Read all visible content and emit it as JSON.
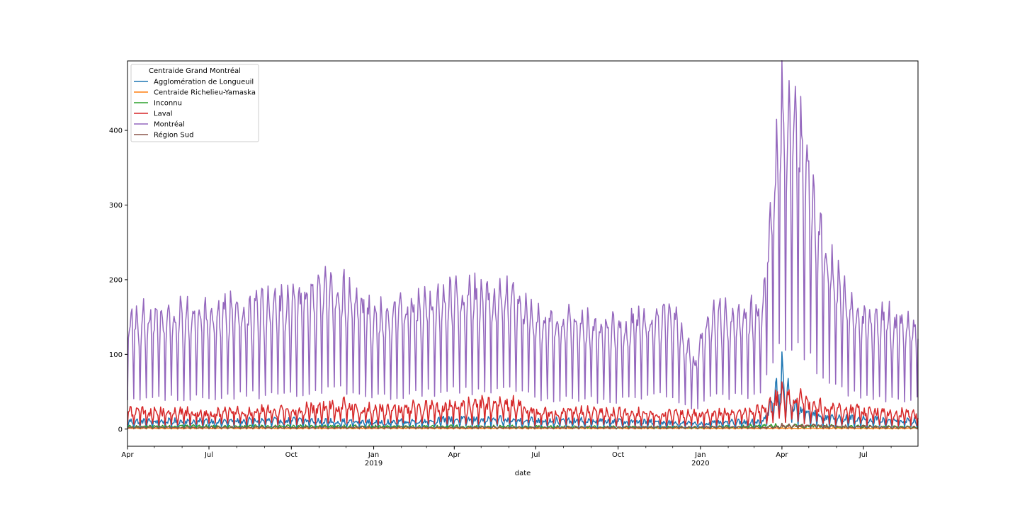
{
  "chart_data": {
    "type": "line",
    "title": "",
    "xlabel": "date",
    "ylabel": "",
    "x_start": "2018-04-01",
    "x_end": "2020-08-31",
    "ylim": [
      -23,
      493
    ],
    "y_ticks": [
      0,
      100,
      200,
      300,
      400
    ],
    "x_ticks": [
      {
        "date": "2018-04-01",
        "label": "Apr",
        "sublabel": ""
      },
      {
        "date": "2018-07-01",
        "label": "Jul",
        "sublabel": ""
      },
      {
        "date": "2018-10-01",
        "label": "Oct",
        "sublabel": ""
      },
      {
        "date": "2019-01-01",
        "label": "Jan",
        "sublabel": "2019"
      },
      {
        "date": "2019-04-01",
        "label": "Apr",
        "sublabel": ""
      },
      {
        "date": "2019-07-01",
        "label": "Jul",
        "sublabel": ""
      },
      {
        "date": "2019-10-01",
        "label": "Oct",
        "sublabel": ""
      },
      {
        "date": "2020-01-01",
        "label": "Jan",
        "sublabel": "2020"
      },
      {
        "date": "2020-04-01",
        "label": "Apr",
        "sublabel": ""
      },
      {
        "date": "2020-07-01",
        "label": "Jul",
        "sublabel": ""
      }
    ],
    "legend": {
      "title": "Centraide Grand Montréal",
      "placement": "upper-left"
    },
    "grid": false,
    "series": [
      {
        "name": "Agglomération de Longueuil",
        "color": "#1f77b4",
        "profile": [
          [
            "2018-04-01",
            8
          ],
          [
            "2018-07-01",
            8
          ],
          [
            "2018-10-01",
            9
          ],
          [
            "2019-01-01",
            7
          ],
          [
            "2019-04-01",
            10
          ],
          [
            "2019-07-01",
            9
          ],
          [
            "2019-10-01",
            8
          ],
          [
            "2020-01-01",
            6
          ],
          [
            "2020-03-10",
            8
          ],
          [
            "2020-03-25",
            35
          ],
          [
            "2020-04-01",
            55
          ],
          [
            "2020-04-12",
            25
          ],
          [
            "2020-05-15",
            12
          ],
          [
            "2020-08-31",
            8
          ]
        ],
        "weekday_factors": [
          1.0,
          1.3,
          1.4,
          1.4,
          1.3,
          1.1,
          0.3
        ],
        "noise": 0.35
      },
      {
        "name": "Centraide Richelieu-Yamaska",
        "color": "#ff7f0e",
        "profile": [
          [
            "2018-04-01",
            1
          ],
          [
            "2020-08-31",
            1
          ]
        ],
        "weekday_factors": [
          1.0,
          1.2,
          1.2,
          1.2,
          1.1,
          0.8,
          0.2
        ],
        "noise": 0.6
      },
      {
        "name": "Inconnu",
        "color": "#2ca02c",
        "profile": [
          [
            "2018-04-01",
            3
          ],
          [
            "2019-04-01",
            3
          ],
          [
            "2020-01-01",
            2
          ],
          [
            "2020-04-01",
            4
          ],
          [
            "2020-08-31",
            2
          ]
        ],
        "weekday_factors": [
          1.0,
          1.2,
          1.3,
          1.3,
          1.2,
          0.9,
          0.3
        ],
        "noise": 0.5
      },
      {
        "name": "Laval",
        "color": "#d62728",
        "profile": [
          [
            "2018-04-01",
            18
          ],
          [
            "2018-07-01",
            17
          ],
          [
            "2018-10-01",
            20
          ],
          [
            "2018-12-01",
            24
          ],
          [
            "2019-01-01",
            20
          ],
          [
            "2019-04-01",
            24
          ],
          [
            "2019-06-01",
            26
          ],
          [
            "2019-07-01",
            18
          ],
          [
            "2019-10-01",
            17
          ],
          [
            "2020-01-01",
            15
          ],
          [
            "2020-03-15",
            20
          ],
          [
            "2020-04-01",
            35
          ],
          [
            "2020-05-01",
            28
          ],
          [
            "2020-06-01",
            20
          ],
          [
            "2020-08-31",
            15
          ]
        ],
        "weekday_factors": [
          1.0,
          1.3,
          1.4,
          1.4,
          1.3,
          1.1,
          0.35
        ],
        "noise": 0.3
      },
      {
        "name": "Montréal",
        "color": "#9467bd",
        "profile": [
          [
            "2018-04-01",
            120
          ],
          [
            "2018-07-01",
            125
          ],
          [
            "2018-10-01",
            135
          ],
          [
            "2018-11-15",
            155
          ],
          [
            "2018-12-20",
            135
          ],
          [
            "2019-01-01",
            120
          ],
          [
            "2019-04-01",
            145
          ],
          [
            "2019-06-01",
            145
          ],
          [
            "2019-07-01",
            120
          ],
          [
            "2019-10-01",
            110
          ],
          [
            "2019-12-01",
            130
          ],
          [
            "2019-12-25",
            70
          ],
          [
            "2020-01-10",
            120
          ],
          [
            "2020-03-10",
            125
          ],
          [
            "2020-03-20",
            250
          ],
          [
            "2020-04-01",
            340
          ],
          [
            "2020-04-20",
            330
          ],
          [
            "2020-05-10",
            230
          ],
          [
            "2020-06-01",
            160
          ],
          [
            "2020-07-01",
            120
          ],
          [
            "2020-08-31",
            115
          ]
        ],
        "weekday_factors": [
          1.0,
          1.2,
          1.3,
          1.3,
          1.2,
          0.95,
          0.35
        ],
        "noise": 0.12
      },
      {
        "name": "Région Sud",
        "color": "#8c564b",
        "profile": [
          [
            "2018-04-01",
            2
          ],
          [
            "2020-03-15",
            2
          ],
          [
            "2020-04-01",
            4
          ],
          [
            "2020-08-31",
            2
          ]
        ],
        "weekday_factors": [
          1.0,
          1.2,
          1.3,
          1.3,
          1.2,
          0.9,
          0.3
        ],
        "noise": 0.5
      }
    ]
  }
}
